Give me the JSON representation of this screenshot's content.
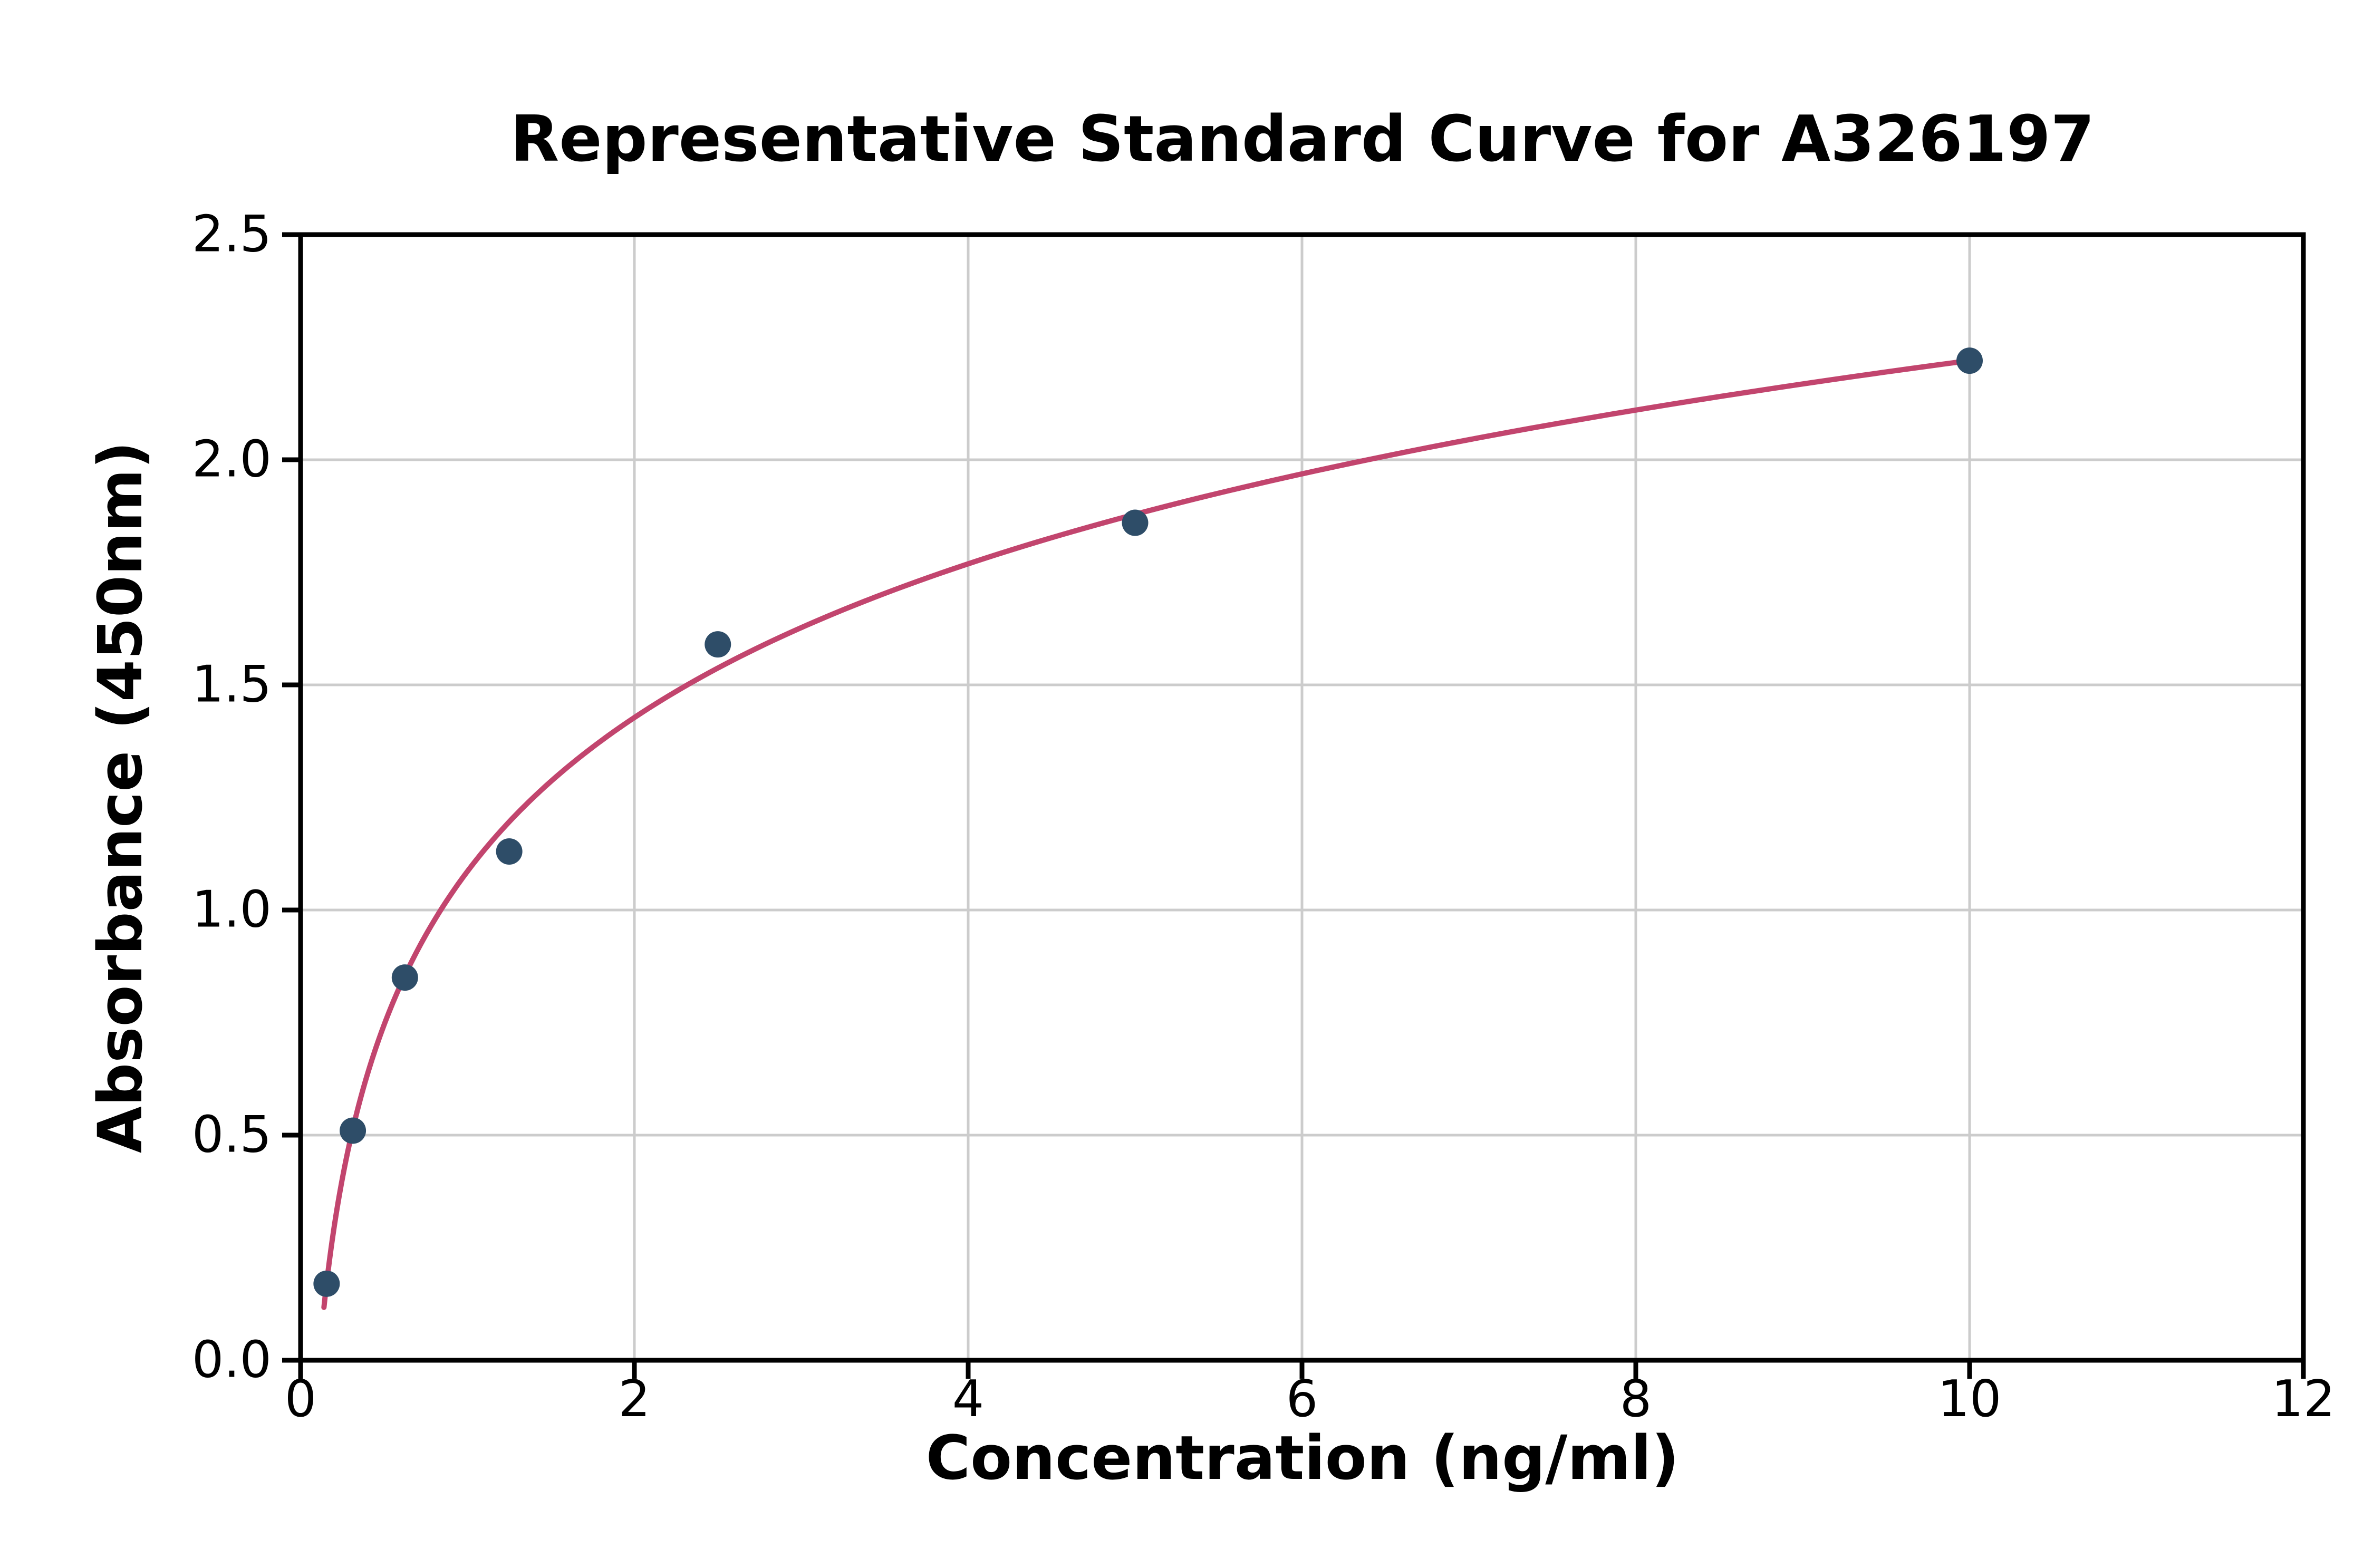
{
  "chart_data": {
    "type": "scatter",
    "title": "Representative Standard Curve for A326197",
    "xlabel": "Concentration (ng/ml)",
    "ylabel": "Absorbance (450nm)",
    "xlim": [
      0,
      12
    ],
    "ylim": [
      0,
      2.5
    ],
    "grid": true,
    "legend": "none",
    "x_ticks": {
      "values": [
        0,
        2,
        4,
        6,
        8,
        10,
        12
      ],
      "labels": [
        "0",
        "2",
        "4",
        "6",
        "8",
        "10",
        "12"
      ]
    },
    "y_ticks": {
      "values": [
        0,
        0.5,
        1.0,
        1.5,
        2.0,
        2.5
      ],
      "labels": [
        "0.0",
        "0.5",
        "1.0",
        "1.5",
        "2.0",
        "2.5"
      ]
    },
    "series": [
      {
        "name": "standard-points",
        "type": "scatter",
        "x": [
          0.156,
          0.313,
          0.625,
          1.25,
          2.5,
          5,
          10
        ],
        "y": [
          0.17,
          0.51,
          0.85,
          1.13,
          1.59,
          1.86,
          2.22
        ],
        "color": "#2e4d68"
      },
      {
        "name": "fitted-curve",
        "type": "line",
        "fit": "logarithmic",
        "fit_params": {
          "A": 1.086,
          "B": 0.4926
        },
        "x_range": [
          0.14,
          10
        ],
        "color": "#c2456e"
      }
    ],
    "colors": {
      "grid": "#cccccc",
      "axis": "#000000",
      "background": "#ffffff"
    }
  }
}
